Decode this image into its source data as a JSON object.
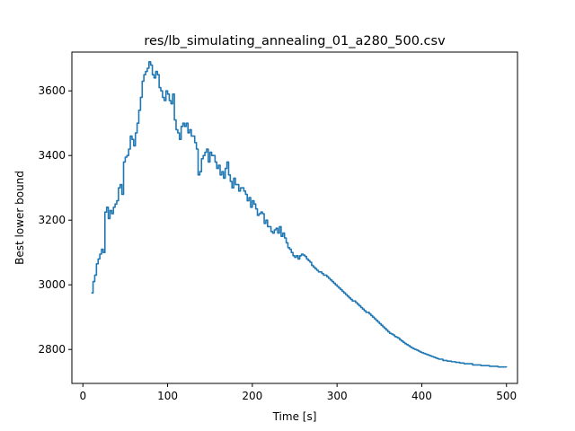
{
  "chart_data": {
    "type": "line",
    "title": "res/lb_simulating_annealing_01_a280_500.csv",
    "xlabel": "Time [s]",
    "ylabel": "Best lower bound",
    "xlim": [
      -13,
      513
    ],
    "ylim": [
      2695,
      3720
    ],
    "xticks": [
      0,
      100,
      200,
      300,
      400,
      500
    ],
    "yticks": [
      2800,
      3000,
      3200,
      3400,
      3600
    ],
    "grid": false,
    "legend": "none",
    "series": [
      {
        "color": "#1f77b4",
        "x": [
          10,
          12,
          14,
          16,
          18,
          20,
          22,
          24,
          26,
          28,
          30,
          32,
          34,
          36,
          38,
          40,
          42,
          44,
          46,
          48,
          50,
          52,
          54,
          56,
          58,
          60,
          62,
          64,
          66,
          68,
          70,
          72,
          74,
          76,
          78,
          80,
          82,
          84,
          86,
          88,
          90,
          92,
          94,
          96,
          98,
          100,
          102,
          104,
          106,
          108,
          110,
          112,
          114,
          116,
          118,
          120,
          122,
          124,
          126,
          128,
          130,
          132,
          134,
          136,
          138,
          140,
          142,
          144,
          146,
          148,
          150,
          152,
          154,
          156,
          158,
          160,
          162,
          164,
          166,
          168,
          170,
          172,
          174,
          176,
          178,
          180,
          182,
          184,
          186,
          188,
          190,
          192,
          194,
          196,
          198,
          200,
          202,
          204,
          206,
          208,
          210,
          212,
          214,
          216,
          218,
          220,
          222,
          224,
          226,
          228,
          230,
          232,
          234,
          236,
          238,
          240,
          242,
          244,
          246,
          248,
          250,
          252,
          254,
          256,
          258,
          260,
          262,
          264,
          266,
          268,
          270,
          272,
          274,
          276,
          278,
          280,
          282,
          284,
          286,
          288,
          290,
          292,
          294,
          296,
          298,
          300,
          302,
          304,
          306,
          308,
          310,
          312,
          314,
          316,
          318,
          320,
          322,
          324,
          326,
          328,
          330,
          332,
          334,
          336,
          338,
          340,
          342,
          344,
          346,
          348,
          350,
          352,
          354,
          356,
          358,
          360,
          362,
          364,
          366,
          368,
          370,
          372,
          374,
          376,
          378,
          380,
          382,
          384,
          386,
          388,
          390,
          392,
          394,
          396,
          398,
          400,
          402,
          404,
          406,
          408,
          410,
          412,
          414,
          416,
          418,
          420,
          425,
          430,
          435,
          440,
          445,
          450,
          460,
          470,
          480,
          490,
          500
        ],
        "values": [
          2975,
          3010,
          3030,
          3065,
          3080,
          3095,
          3110,
          3100,
          3225,
          3240,
          3205,
          3230,
          3220,
          3240,
          3250,
          3260,
          3300,
          3310,
          3280,
          3380,
          3395,
          3400,
          3420,
          3460,
          3450,
          3430,
          3470,
          3500,
          3540,
          3580,
          3630,
          3650,
          3660,
          3670,
          3690,
          3680,
          3650,
          3640,
          3660,
          3650,
          3610,
          3600,
          3580,
          3570,
          3600,
          3590,
          3570,
          3560,
          3590,
          3510,
          3480,
          3470,
          3450,
          3490,
          3500,
          3490,
          3500,
          3470,
          3480,
          3460,
          3460,
          3440,
          3420,
          3340,
          3350,
          3390,
          3400,
          3410,
          3420,
          3380,
          3410,
          3400,
          3400,
          3380,
          3360,
          3370,
          3340,
          3350,
          3330,
          3360,
          3380,
          3340,
          3320,
          3300,
          3330,
          3310,
          3310,
          3290,
          3300,
          3300,
          3290,
          3280,
          3260,
          3270,
          3240,
          3260,
          3250,
          3235,
          3215,
          3220,
          3225,
          3220,
          3190,
          3200,
          3180,
          3180,
          3165,
          3160,
          3170,
          3175,
          3160,
          3180,
          3150,
          3160,
          3145,
          3130,
          3115,
          3110,
          3100,
          3090,
          3085,
          3090,
          3080,
          3090,
          3095,
          3092,
          3088,
          3080,
          3075,
          3070,
          3060,
          3055,
          3050,
          3045,
          3040,
          3040,
          3035,
          3030,
          3030,
          3025,
          3020,
          3015,
          3010,
          3005,
          3000,
          2995,
          2990,
          2985,
          2980,
          2975,
          2970,
          2965,
          2960,
          2955,
          2950,
          2950,
          2945,
          2940,
          2935,
          2930,
          2925,
          2920,
          2915,
          2915,
          2910,
          2905,
          2900,
          2895,
          2890,
          2885,
          2880,
          2875,
          2870,
          2865,
          2860,
          2855,
          2850,
          2848,
          2845,
          2840,
          2838,
          2835,
          2830,
          2826,
          2822,
          2818,
          2815,
          2812,
          2808,
          2805,
          2802,
          2800,
          2798,
          2795,
          2792,
          2790,
          2788,
          2786,
          2784,
          2782,
          2780,
          2778,
          2776,
          2774,
          2772,
          2770,
          2766,
          2764,
          2762,
          2760,
          2758,
          2756,
          2752,
          2750,
          2748,
          2746,
          2745
        ]
      }
    ]
  }
}
